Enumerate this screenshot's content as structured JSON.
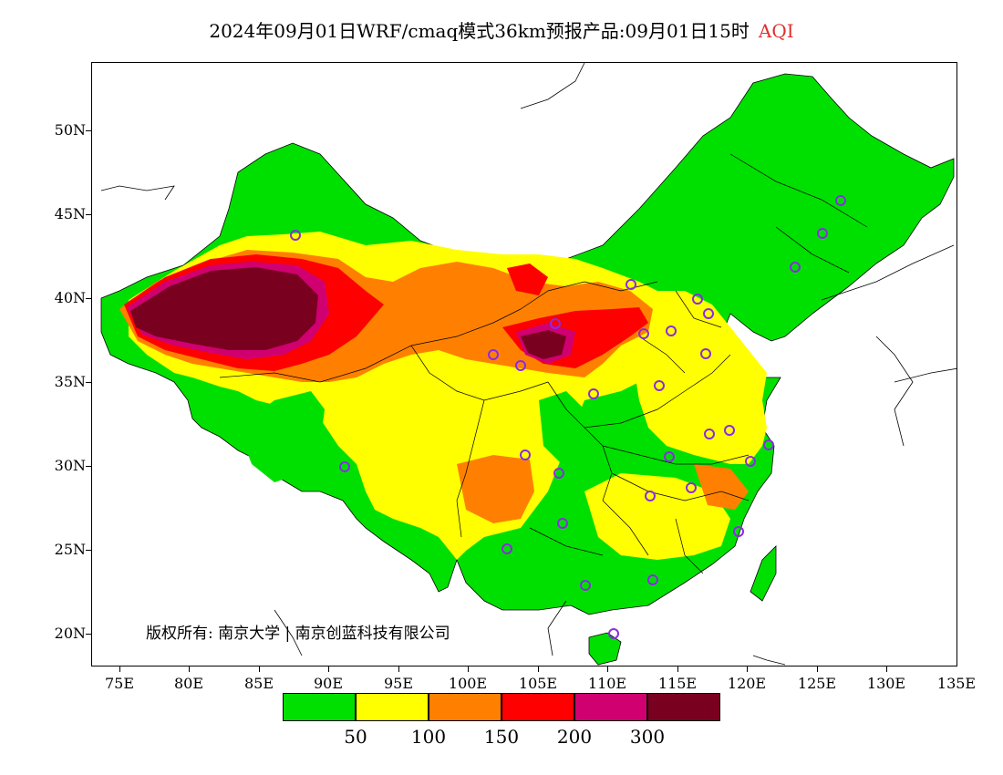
{
  "title": {
    "main": "2024年09月01日WRF/cmaq模式36km预报产品:09月01日15时",
    "variable": "AQI"
  },
  "map": {
    "lat_ticks": [
      "50N",
      "45N",
      "40N",
      "35N",
      "30N",
      "25N",
      "20N"
    ],
    "lon_ticks": [
      "75E",
      "80E",
      "85E",
      "90E",
      "95E",
      "100E",
      "105E",
      "110E",
      "115E",
      "120E",
      "125E",
      "130E",
      "135E"
    ],
    "copyright": "版权所有: 南京大学 | 南京创蓝科技有限公司"
  },
  "colors": {
    "good": "#00e000",
    "moderate": "#ffff00",
    "usg": "#ff8000",
    "unhealthy": "#ff0000",
    "very_unhealthy": "#d00070",
    "hazardous": "#7a0020",
    "station_marker": "#8a2be2",
    "title_accent": "#e03030"
  },
  "legend": {
    "labels": [
      "50",
      "100",
      "150",
      "200",
      "300"
    ],
    "swatches": [
      "good",
      "moderate",
      "usg",
      "unhealthy",
      "very_unhealthy",
      "hazardous"
    ]
  }
}
